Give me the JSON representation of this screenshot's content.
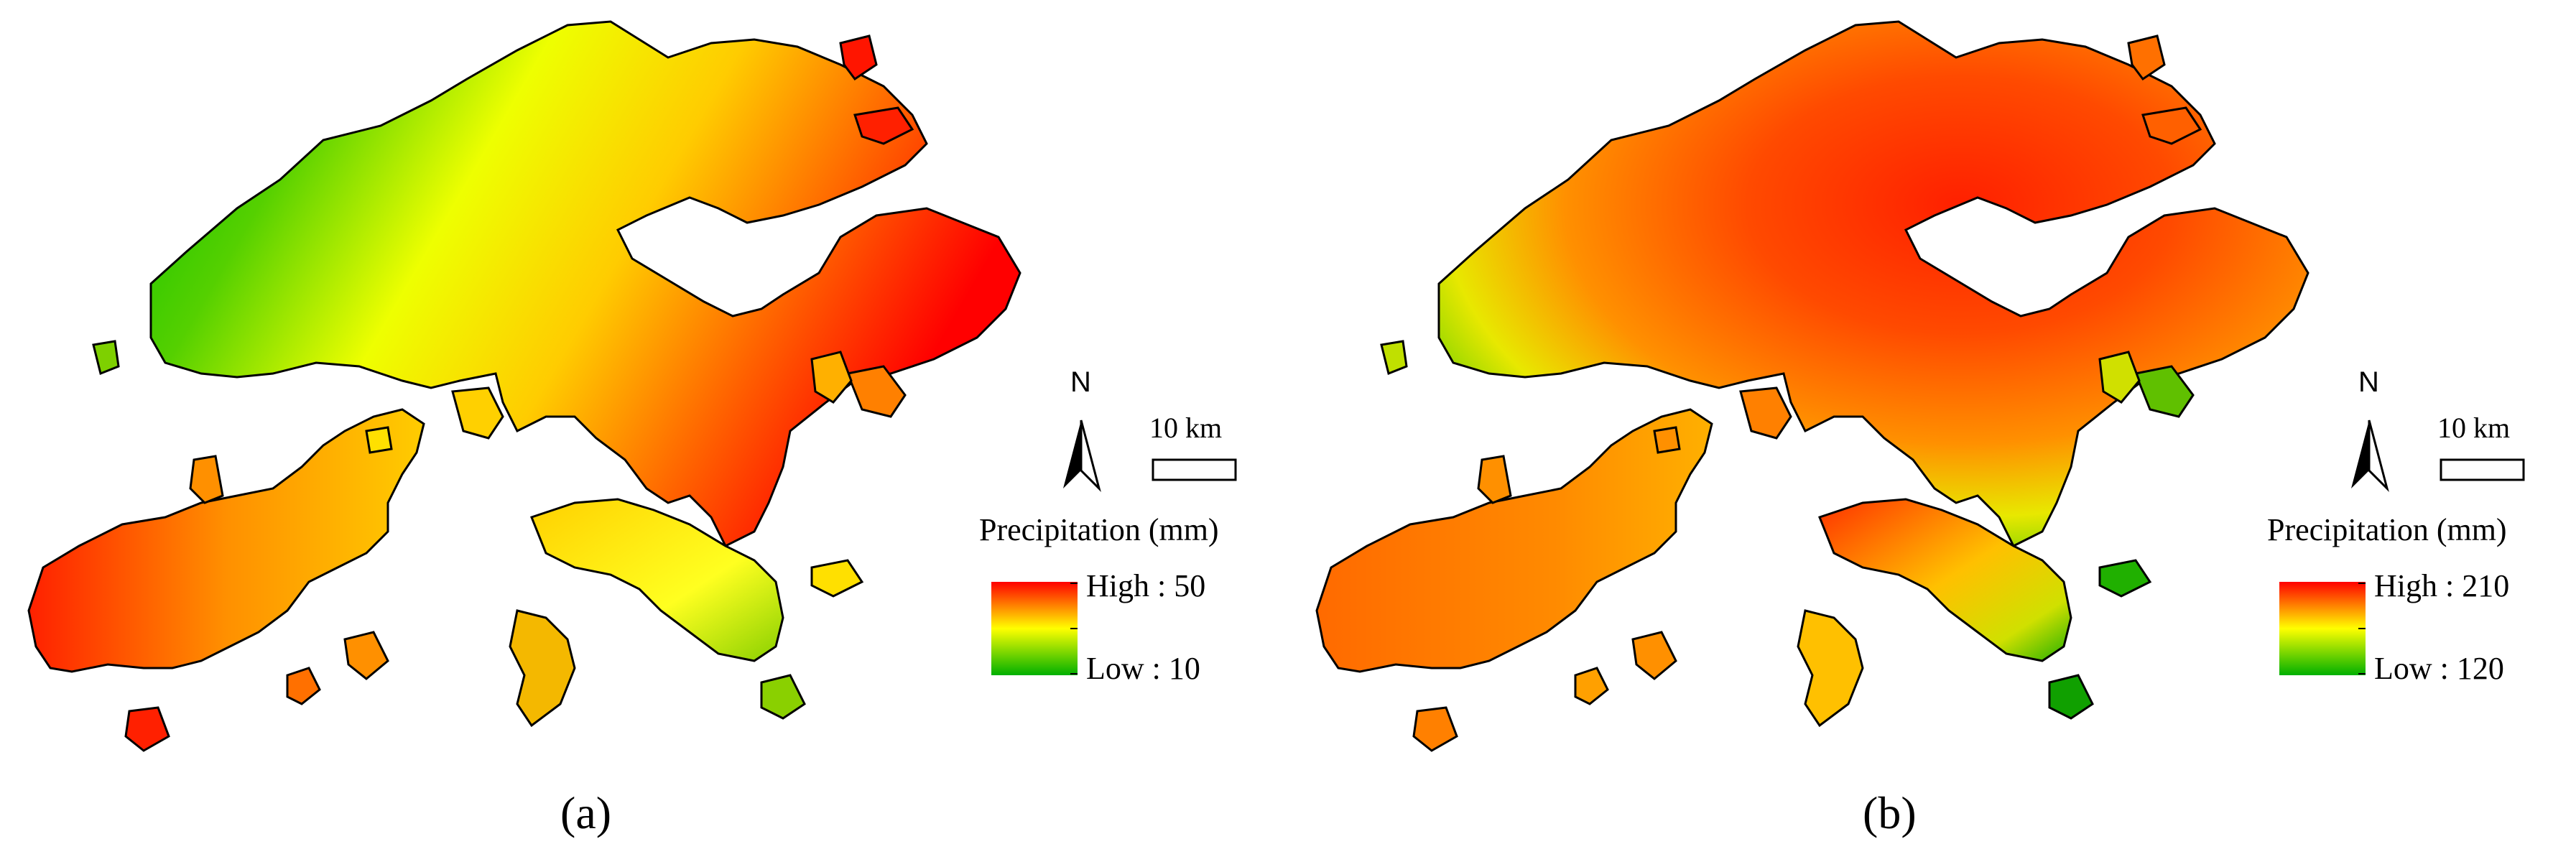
{
  "panels": [
    {
      "id": "a",
      "caption": "(a)",
      "legend": {
        "title": "Precipitation (mm)",
        "high_label": "High : 50",
        "low_label": "Low   : 10",
        "high_color": "#ff0000",
        "mid_color": "#ffff00",
        "low_color": "#00b000"
      },
      "scale_bar": "10 km",
      "north_label": "N"
    },
    {
      "id": "b",
      "caption": "(b)",
      "legend": {
        "title": "Precipitation (mm)",
        "high_label": "High : 210",
        "low_label": "Low   : 120",
        "high_color": "#ff0000",
        "mid_color": "#ffff00",
        "low_color": "#00b000"
      },
      "scale_bar": "10 km",
      "north_label": "N"
    }
  ]
}
